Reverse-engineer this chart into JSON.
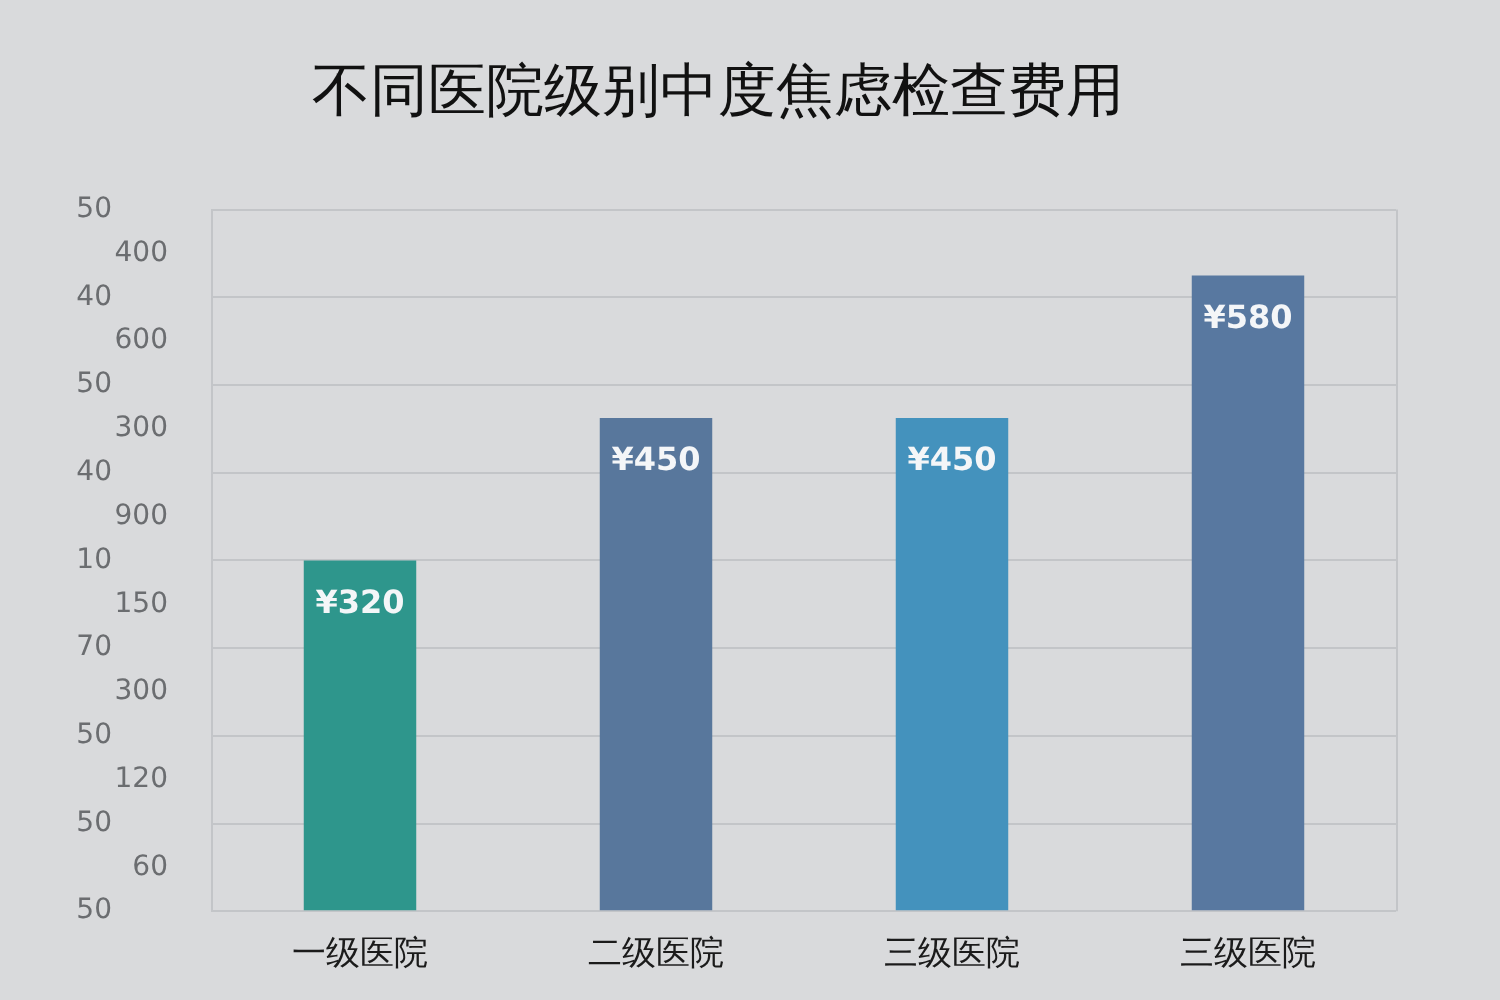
{
  "chart_data": {
    "type": "bar",
    "title": "不同医院级别中度焦虑检查费用",
    "categories": [
      "一级医院",
      "二级医院",
      "三级医院",
      "三级医院"
    ],
    "values": [
      320,
      450,
      450,
      580
    ],
    "colors": [
      "#2e968c",
      "#58779c",
      "#4492bd",
      "#5878a0"
    ],
    "value_labels": [
      "¥320",
      "¥450",
      "¥450",
      "¥580"
    ],
    "ylim": [
      0,
      640
    ],
    "yticks": [
      {
        "value": 0,
        "label": null
      },
      {
        "value": 80,
        "label": null
      },
      {
        "value": 160,
        "label": null
      },
      {
        "value": 240,
        "label": null
      },
      {
        "value": 320,
        "label": null
      },
      {
        "value": 400,
        "label": null
      },
      {
        "value": 480,
        "label": null
      },
      {
        "value": 560,
        "label": null
      },
      {
        "value": 640,
        "label": null
      }
    ],
    "annotations": [
      "50",
      "400",
      "40",
      "600",
      "50",
      "300",
      "40",
      "900",
      "10",
      "150",
      "70",
      "300",
      "50",
      "120",
      "50",
      "60",
      "50"
    ],
    "grid": "y"
  }
}
